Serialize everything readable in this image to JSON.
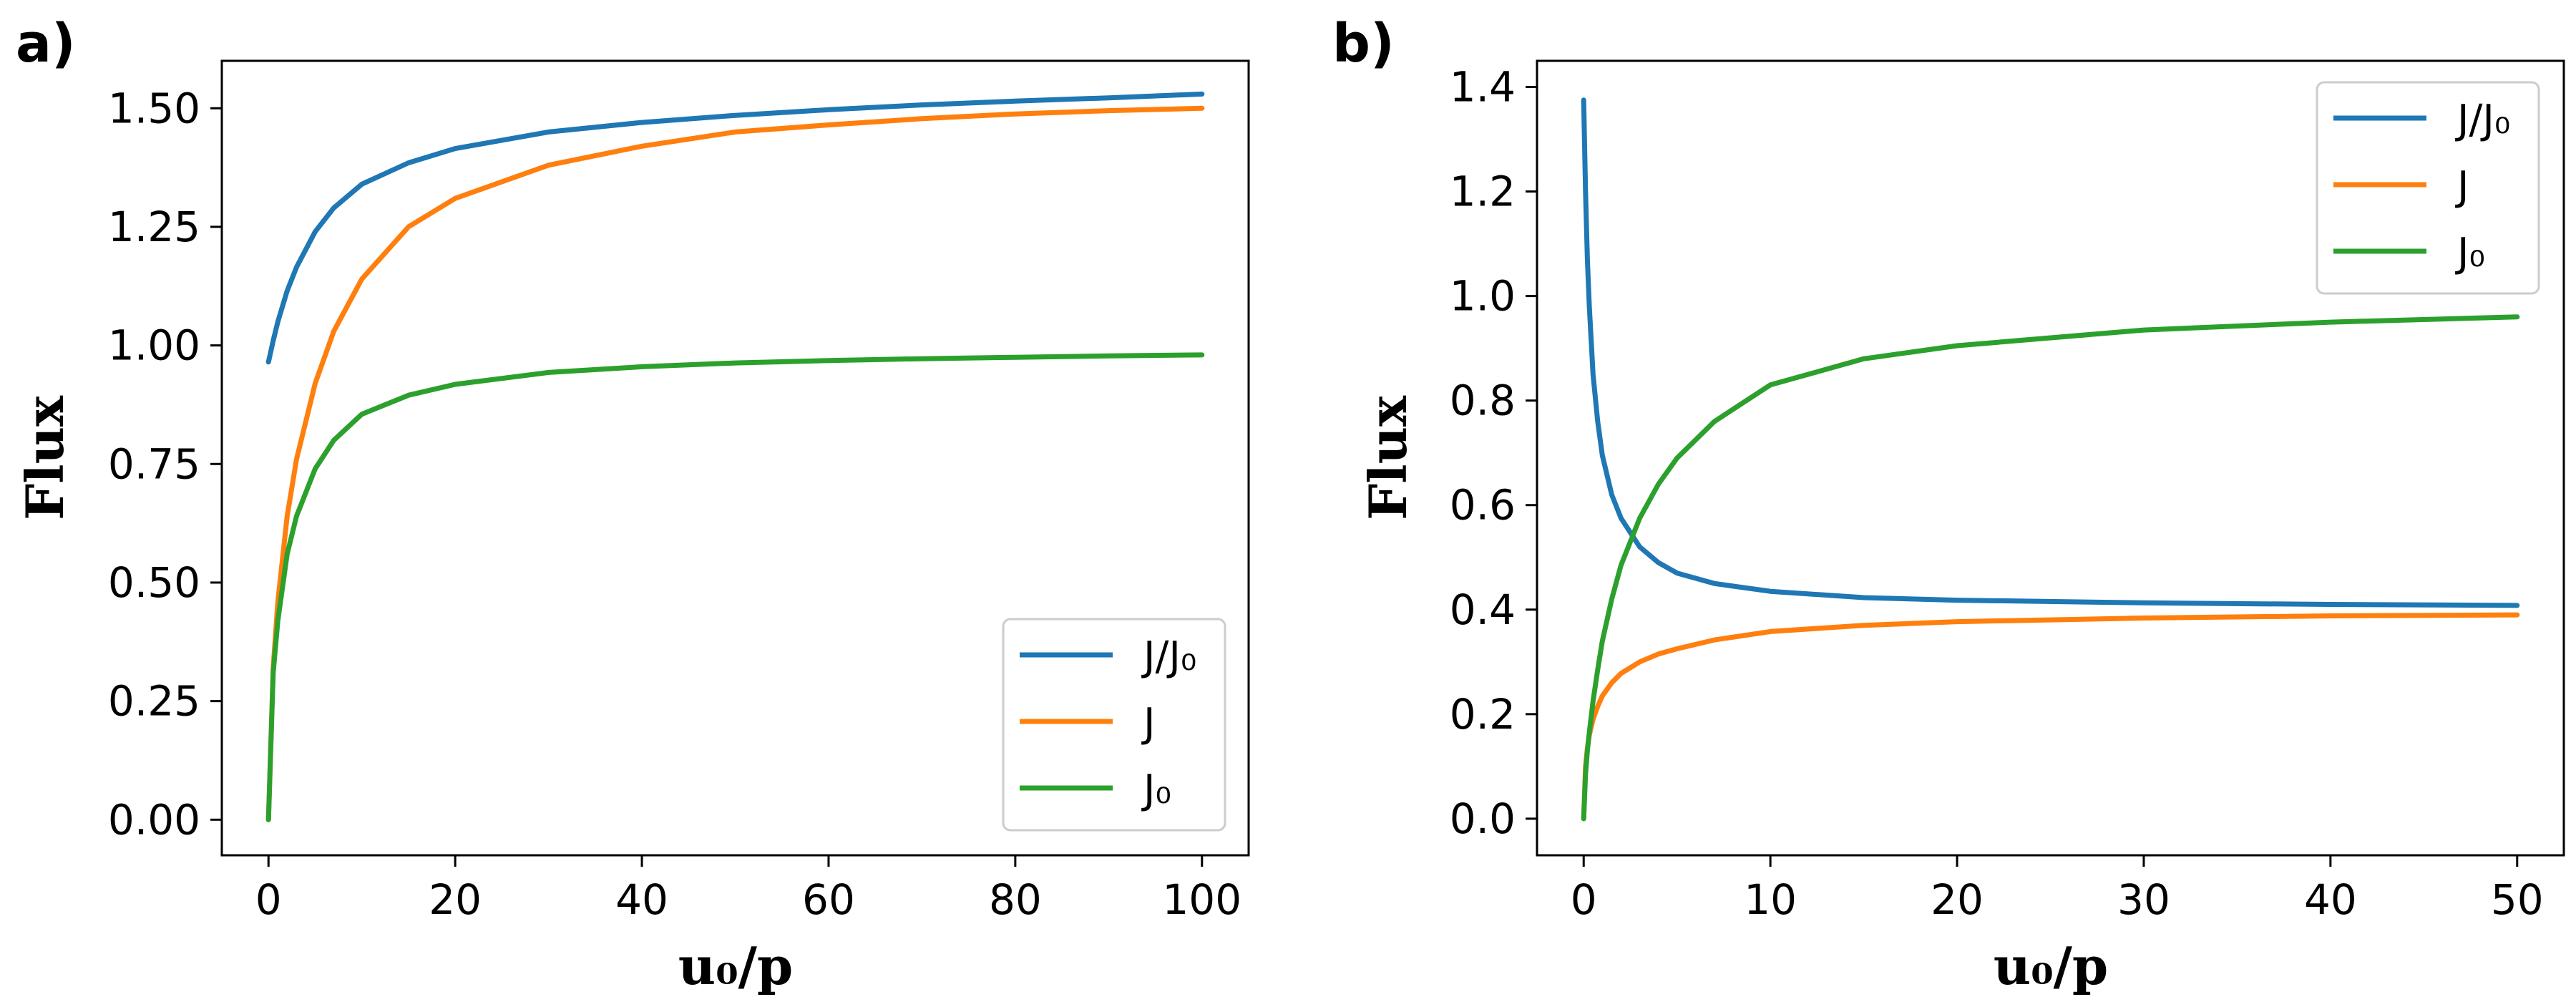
{
  "chart_data": [
    {
      "type": "line",
      "panel_label": "a)",
      "xlabel": "u₀/p",
      "ylabel": "Flux",
      "xlim": [
        -5,
        105
      ],
      "ylim": [
        -0.075,
        1.6
      ],
      "xticks": [
        0,
        20,
        40,
        60,
        80,
        100
      ],
      "xtick_labels": [
        "0",
        "20",
        "40",
        "60",
        "80",
        "100"
      ],
      "yticks": [
        0.0,
        0.25,
        0.5,
        0.75,
        1.0,
        1.25,
        1.5
      ],
      "ytick_labels": [
        "0.00",
        "0.25",
        "0.50",
        "0.75",
        "1.00",
        "1.25",
        "1.50"
      ],
      "grid": false,
      "legend_position": "bottom-right",
      "series": [
        {
          "name": "J/J₀",
          "color": "#1f77b4",
          "x": [
            0,
            0.5,
            1,
            2,
            3,
            5,
            7,
            10,
            15,
            20,
            30,
            40,
            50,
            60,
            70,
            80,
            90,
            100
          ],
          "y": [
            0.965,
            1.01,
            1.05,
            1.115,
            1.165,
            1.24,
            1.29,
            1.34,
            1.385,
            1.415,
            1.45,
            1.47,
            1.485,
            1.497,
            1.507,
            1.515,
            1.522,
            1.53
          ]
        },
        {
          "name": "J",
          "color": "#ff7f0e",
          "x": [
            0,
            0.5,
            1,
            2,
            3,
            5,
            7,
            10,
            15,
            20,
            30,
            40,
            50,
            60,
            70,
            80,
            90,
            100
          ],
          "y": [
            0.0,
            0.32,
            0.46,
            0.64,
            0.76,
            0.92,
            1.03,
            1.14,
            1.25,
            1.31,
            1.38,
            1.42,
            1.45,
            1.465,
            1.478,
            1.488,
            1.495,
            1.5
          ]
        },
        {
          "name": "J₀",
          "color": "#2ca02c",
          "x": [
            0,
            0.5,
            1,
            2,
            3,
            5,
            7,
            10,
            15,
            20,
            30,
            40,
            50,
            60,
            70,
            80,
            90,
            100
          ],
          "y": [
            0.0,
            0.31,
            0.42,
            0.56,
            0.64,
            0.74,
            0.8,
            0.855,
            0.895,
            0.918,
            0.943,
            0.955,
            0.963,
            0.968,
            0.972,
            0.975,
            0.978,
            0.98
          ]
        }
      ]
    },
    {
      "type": "line",
      "panel_label": "b)",
      "xlabel": "u₀/p",
      "ylabel": "Flux",
      "xlim": [
        -2.5,
        52.5
      ],
      "ylim": [
        -0.07,
        1.45
      ],
      "xticks": [
        0,
        10,
        20,
        30,
        40,
        50
      ],
      "xtick_labels": [
        "0",
        "10",
        "20",
        "30",
        "40",
        "50"
      ],
      "yticks": [
        0.0,
        0.2,
        0.4,
        0.6,
        0.8,
        1.0,
        1.2,
        1.4
      ],
      "ytick_labels": [
        "0.0",
        "0.2",
        "0.4",
        "0.6",
        "0.8",
        "1.0",
        "1.2",
        "1.4"
      ],
      "grid": false,
      "legend_position": "top-right",
      "series": [
        {
          "name": "J/J₀",
          "color": "#1f77b4",
          "x": [
            0,
            0.1,
            0.2,
            0.3,
            0.5,
            0.75,
            1,
            1.5,
            2,
            3,
            4,
            5,
            7,
            10,
            15,
            20,
            30,
            40,
            50
          ],
          "y": [
            1.375,
            1.2,
            1.07,
            0.98,
            0.85,
            0.76,
            0.695,
            0.62,
            0.575,
            0.52,
            0.49,
            0.47,
            0.45,
            0.435,
            0.423,
            0.418,
            0.413,
            0.41,
            0.408
          ]
        },
        {
          "name": "J",
          "color": "#ff7f0e",
          "x": [
            0,
            0.1,
            0.2,
            0.3,
            0.5,
            0.75,
            1,
            1.5,
            2,
            3,
            4,
            5,
            7,
            10,
            15,
            20,
            30,
            40,
            50
          ],
          "y": [
            0.0,
            0.1,
            0.135,
            0.16,
            0.19,
            0.215,
            0.235,
            0.26,
            0.278,
            0.3,
            0.315,
            0.325,
            0.342,
            0.358,
            0.37,
            0.377,
            0.384,
            0.388,
            0.39
          ]
        },
        {
          "name": "J₀",
          "color": "#2ca02c",
          "x": [
            0,
            0.1,
            0.2,
            0.3,
            0.5,
            0.75,
            1,
            1.5,
            2,
            3,
            4,
            5,
            7,
            10,
            15,
            20,
            30,
            40,
            50
          ],
          "y": [
            0.0,
            0.085,
            0.13,
            0.165,
            0.225,
            0.285,
            0.34,
            0.42,
            0.485,
            0.575,
            0.64,
            0.69,
            0.76,
            0.83,
            0.88,
            0.905,
            0.935,
            0.95,
            0.96
          ]
        }
      ]
    }
  ]
}
